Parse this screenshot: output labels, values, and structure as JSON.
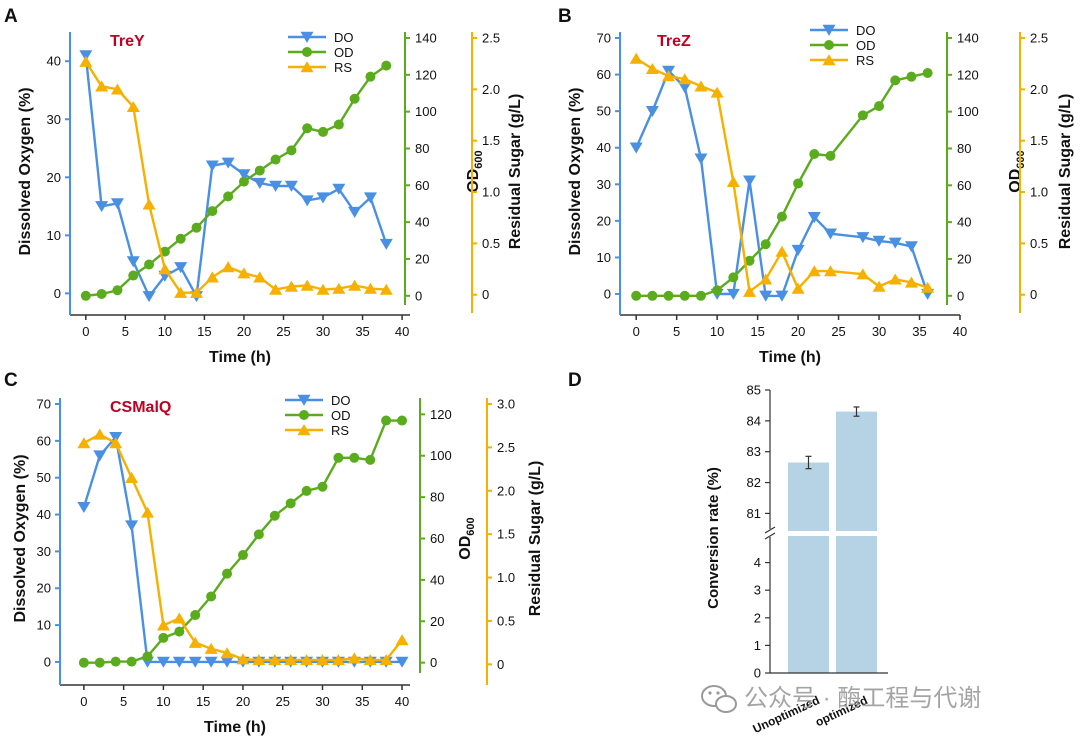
{
  "colors": {
    "do": "#4a90e2",
    "od": "#5aab1e",
    "rs": "#f5b000",
    "title": "#c00022",
    "bar": "#b5d3e5",
    "axis": "#333333",
    "watermark": "#9a9a9a"
  },
  "chart_data": [
    {
      "type": "line",
      "panel": "A",
      "title": "TreY",
      "xlabel": "Time (h)",
      "x_ticks": [
        "0",
        "5",
        "10",
        "15",
        "20",
        "25",
        "30",
        "35",
        "40"
      ],
      "xlim": [
        -2,
        41
      ],
      "axes": {
        "do": {
          "label": "Dissolved Oxygen (%)",
          "ylim": [
            -2,
            44
          ],
          "ticks": [
            "0",
            "10",
            "20",
            "30",
            "40"
          ]
        },
        "od": {
          "label": "OD",
          "label_sub": "600",
          "ylim": [
            -5,
            140
          ],
          "ticks": [
            "0",
            "20",
            "40",
            "60",
            "80",
            "100",
            "120",
            "140"
          ]
        },
        "rs": {
          "label": "Residual Sugar (g/L)",
          "ylim": [
            -0.1,
            2.5
          ],
          "ticks": [
            "0",
            "0.5",
            "1.0",
            "1.5",
            "2.0",
            "2.5"
          ]
        }
      },
      "legend": [
        "DO",
        "OD",
        "RS"
      ],
      "series": [
        {
          "name": "DO",
          "axis": "do",
          "marker": "triangle-down",
          "x": [
            0,
            2,
            4,
            6,
            8,
            10,
            12,
            14,
            16,
            18,
            20,
            22,
            24,
            26,
            28,
            30,
            32,
            34,
            36,
            38
          ],
          "y": [
            41,
            15,
            15.5,
            5.5,
            -0.5,
            3,
            4.5,
            -0.5,
            22,
            22.5,
            20.5,
            19,
            18.5,
            18.5,
            16,
            16.5,
            18,
            14,
            16.5,
            8.5
          ]
        },
        {
          "name": "OD",
          "axis": "od",
          "marker": "circle",
          "x": [
            0,
            2,
            4,
            6,
            8,
            10,
            12,
            14,
            16,
            18,
            20,
            22,
            24,
            26,
            28,
            30,
            32,
            34,
            36,
            38
          ],
          "y": [
            0,
            1,
            3,
            11,
            17,
            24,
            31,
            37,
            46,
            54,
            62,
            68,
            74,
            79,
            91,
            89,
            93,
            107,
            119,
            125
          ]
        },
        {
          "name": "RS",
          "axis": "rs",
          "marker": "triangle-up",
          "x": [
            0,
            2,
            4,
            6,
            8,
            10,
            12,
            14,
            16,
            18,
            20,
            22,
            24,
            26,
            28,
            30,
            32,
            34,
            36,
            38
          ],
          "y": [
            2.27,
            2.03,
            2.0,
            1.83,
            0.88,
            0.25,
            0.02,
            0.02,
            0.17,
            0.27,
            0.21,
            0.17,
            0.05,
            0.08,
            0.09,
            0.05,
            0.06,
            0.09,
            0.06,
            0.05
          ]
        }
      ]
    },
    {
      "type": "line",
      "panel": "B",
      "title": "TreZ",
      "xlabel": "Time (h)",
      "x_ticks": [
        "0",
        "5",
        "10",
        "15",
        "20",
        "25",
        "30",
        "35",
        "40"
      ],
      "xlim": [
        -2,
        40
      ],
      "axes": {
        "do": {
          "label": "Dissolved Oxygen (%)",
          "ylim": [
            -3,
            70
          ],
          "ticks": [
            "0",
            "10",
            "20",
            "30",
            "40",
            "50",
            "60",
            "70"
          ]
        },
        "od": {
          "label": "OD",
          "label_sub": "600",
          "ylim": [
            -5,
            140
          ],
          "ticks": [
            "0",
            "20",
            "40",
            "60",
            "80",
            "100",
            "120",
            "140"
          ]
        },
        "rs": {
          "label": "Residual Sugar (g/L)",
          "ylim": [
            -0.1,
            2.5
          ],
          "ticks": [
            "0",
            "0.5",
            "1.0",
            "1.5",
            "2.0",
            "2.5"
          ]
        }
      },
      "legend": [
        "DO",
        "OD",
        "RS"
      ],
      "series": [
        {
          "name": "DO",
          "axis": "do",
          "marker": "triangle-down",
          "x": [
            0,
            2,
            4,
            6,
            8,
            10,
            12,
            14,
            16,
            18,
            20,
            22,
            24,
            28,
            30,
            32,
            34,
            36
          ],
          "y": [
            40,
            50,
            61,
            56.5,
            37,
            0,
            0,
            31,
            -0.5,
            -0.5,
            12,
            21,
            16.5,
            15.5,
            14.5,
            14,
            13,
            0
          ]
        },
        {
          "name": "OD",
          "axis": "od",
          "marker": "circle",
          "x": [
            0,
            2,
            4,
            6,
            8,
            10,
            12,
            14,
            16,
            18,
            20,
            22,
            24,
            28,
            30,
            32,
            34,
            36
          ],
          "y": [
            0,
            0,
            0,
            0,
            0,
            3,
            10,
            19,
            28,
            43,
            61,
            77,
            76,
            98,
            103,
            117,
            119,
            121
          ]
        },
        {
          "name": "RS",
          "axis": "rs",
          "marker": "triangle-up",
          "x": [
            0,
            2,
            4,
            6,
            8,
            10,
            12,
            14,
            16,
            18,
            20,
            22,
            24,
            28,
            30,
            32,
            34,
            36
          ],
          "y": [
            2.3,
            2.2,
            2.13,
            2.1,
            2.03,
            1.97,
            1.1,
            0.03,
            0.15,
            0.42,
            0.06,
            0.23,
            0.23,
            0.2,
            0.08,
            0.15,
            0.12,
            0.07
          ]
        }
      ]
    },
    {
      "type": "line",
      "panel": "C",
      "title": "CSMalQ",
      "xlabel": "Time (h)",
      "x_ticks": [
        "0",
        "5",
        "10",
        "15",
        "20",
        "25",
        "30",
        "35",
        "40"
      ],
      "xlim": [
        -3,
        41
      ],
      "axes": {
        "do": {
          "label": "Dissolved Oxygen (%)",
          "ylim": [
            -3,
            70
          ],
          "ticks": [
            "0",
            "10",
            "20",
            "30",
            "40",
            "50",
            "60",
            "70"
          ]
        },
        "od": {
          "label": "OD",
          "label_sub": "600",
          "ylim": [
            -5,
            125
          ],
          "ticks": [
            "0",
            "20",
            "40",
            "60",
            "80",
            "100",
            "120"
          ]
        },
        "rs": {
          "label": "Residual Sugar (g/L)",
          "ylim": [
            -0.1,
            3.0
          ],
          "ticks": [
            "0",
            "0.5",
            "1.0",
            "1.5",
            "2.0",
            "2.5",
            "3.0"
          ]
        }
      },
      "legend": [
        "DO",
        "OD",
        "RS"
      ],
      "series": [
        {
          "name": "DO",
          "axis": "do",
          "marker": "triangle-down",
          "x": [
            0,
            2,
            4,
            6,
            8,
            10,
            12,
            14,
            16,
            18,
            20,
            22,
            24,
            26,
            28,
            30,
            32,
            34,
            36,
            38,
            40
          ],
          "y": [
            42,
            56,
            61,
            37,
            0,
            0,
            0,
            0,
            0,
            0,
            0,
            0,
            0,
            0,
            0,
            0,
            0,
            0,
            0,
            0,
            0
          ]
        },
        {
          "name": "OD",
          "axis": "od",
          "marker": "circle",
          "x": [
            0,
            2,
            4,
            6,
            8,
            10,
            12,
            14,
            16,
            18,
            20,
            22,
            24,
            26,
            28,
            30,
            32,
            34,
            36,
            38,
            40
          ],
          "y": [
            0,
            0,
            0.5,
            0.5,
            3,
            12,
            15,
            23,
            32,
            43,
            52,
            62,
            71,
            77,
            83,
            85,
            99,
            99,
            98,
            117,
            117
          ]
        },
        {
          "name": "RS",
          "axis": "rs",
          "marker": "triangle-up",
          "x": [
            0,
            2,
            4,
            6,
            8,
            10,
            12,
            14,
            16,
            18,
            20,
            22,
            24,
            26,
            28,
            30,
            32,
            34,
            36,
            38,
            40
          ],
          "y": [
            2.55,
            2.65,
            2.55,
            2.15,
            1.75,
            0.45,
            0.53,
            0.25,
            0.18,
            0.13,
            0.06,
            0.05,
            0.05,
            0.05,
            0.05,
            0.05,
            0.05,
            0.07,
            0.05,
            0.05,
            0.28
          ]
        }
      ]
    },
    {
      "type": "bar",
      "panel": "D",
      "ylabel": "Conversion rate (%)",
      "categories": [
        "Unoptimized",
        "optimized"
      ],
      "values": [
        82.65,
        84.3
      ],
      "errors": [
        0.2,
        0.15
      ],
      "axis_break": true,
      "lower_ylim": [
        0,
        5
      ],
      "lower_ticks": [
        "0",
        "1",
        "2",
        "3",
        "4"
      ],
      "upper_ylim": [
        80.3,
        85
      ],
      "upper_ticks": [
        "81",
        "82",
        "83",
        "84",
        "85"
      ]
    }
  ],
  "panel_letters": [
    "A",
    "B",
    "C",
    "D"
  ],
  "watermark": {
    "icon": "wechat-icon",
    "text": "公众号 · 酶工程与代谢"
  }
}
